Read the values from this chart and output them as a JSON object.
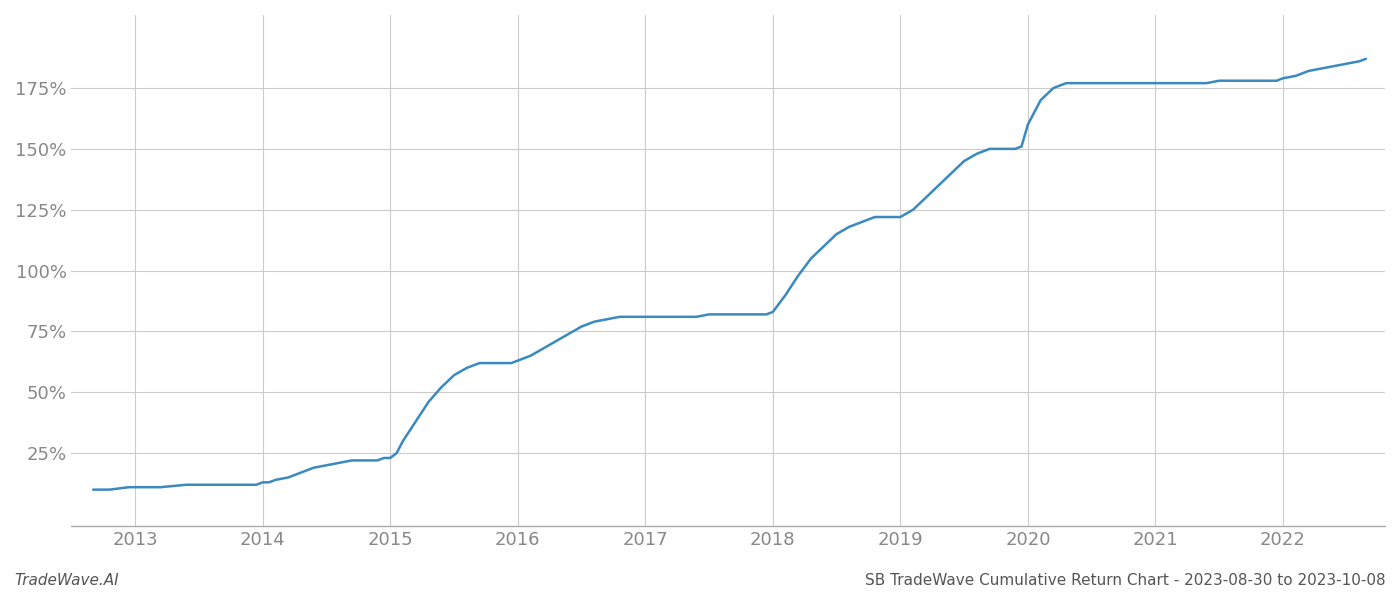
{
  "title": "SB TradeWave Cumulative Return Chart - 2023-08-30 to 2023-10-08",
  "watermark": "TradeWave.AI",
  "line_color": "#3a8abf",
  "background_color": "#ffffff",
  "grid_color": "#cccccc",
  "x_values": [
    2012.67,
    2012.8,
    2012.95,
    2013.0,
    2013.2,
    2013.4,
    2013.6,
    2013.8,
    2013.95,
    2014.0,
    2014.05,
    2014.1,
    2014.2,
    2014.3,
    2014.4,
    2014.5,
    2014.6,
    2014.7,
    2014.8,
    2014.9,
    2014.95,
    2015.0,
    2015.05,
    2015.1,
    2015.2,
    2015.3,
    2015.4,
    2015.5,
    2015.6,
    2015.7,
    2015.8,
    2015.9,
    2015.95,
    2016.0,
    2016.1,
    2016.2,
    2016.3,
    2016.4,
    2016.5,
    2016.6,
    2016.7,
    2016.8,
    2016.9,
    2016.95,
    2017.0,
    2017.1,
    2017.2,
    2017.3,
    2017.4,
    2017.5,
    2017.6,
    2017.7,
    2017.8,
    2017.9,
    2017.95,
    2018.0,
    2018.1,
    2018.2,
    2018.3,
    2018.4,
    2018.5,
    2018.6,
    2018.7,
    2018.8,
    2018.9,
    2018.95,
    2019.0,
    2019.1,
    2019.2,
    2019.3,
    2019.4,
    2019.5,
    2019.6,
    2019.7,
    2019.8,
    2019.9,
    2019.95,
    2020.0,
    2020.1,
    2020.2,
    2020.3,
    2020.4,
    2020.5,
    2020.6,
    2020.7,
    2020.8,
    2020.9,
    2020.95,
    2021.0,
    2021.1,
    2021.2,
    2021.3,
    2021.4,
    2021.5,
    2021.6,
    2021.7,
    2021.8,
    2021.9,
    2021.95,
    2022.0,
    2022.1,
    2022.2,
    2022.3,
    2022.4,
    2022.5,
    2022.6,
    2022.65
  ],
  "y_values": [
    10,
    10,
    11,
    11,
    11,
    12,
    12,
    12,
    12,
    13,
    13,
    14,
    15,
    17,
    19,
    20,
    21,
    22,
    22,
    22,
    23,
    23,
    25,
    30,
    38,
    46,
    52,
    57,
    60,
    62,
    62,
    62,
    62,
    63,
    65,
    68,
    71,
    74,
    77,
    79,
    80,
    81,
    81,
    81,
    81,
    81,
    81,
    81,
    81,
    82,
    82,
    82,
    82,
    82,
    82,
    83,
    90,
    98,
    105,
    110,
    115,
    118,
    120,
    122,
    122,
    122,
    122,
    125,
    130,
    135,
    140,
    145,
    148,
    150,
    150,
    150,
    151,
    160,
    170,
    175,
    177,
    177,
    177,
    177,
    177,
    177,
    177,
    177,
    177,
    177,
    177,
    177,
    177,
    178,
    178,
    178,
    178,
    178,
    178,
    179,
    180,
    182,
    183,
    184,
    185,
    186,
    187
  ],
  "xlim": [
    2012.5,
    2022.8
  ],
  "ylim": [
    -5,
    205
  ],
  "yticks": [
    25,
    50,
    75,
    100,
    125,
    150,
    175
  ],
  "xticks": [
    2013,
    2014,
    2015,
    2016,
    2017,
    2018,
    2019,
    2020,
    2021,
    2022
  ],
  "tick_color": "#888888",
  "tick_fontsize": 13,
  "title_fontsize": 11,
  "watermark_fontsize": 11
}
